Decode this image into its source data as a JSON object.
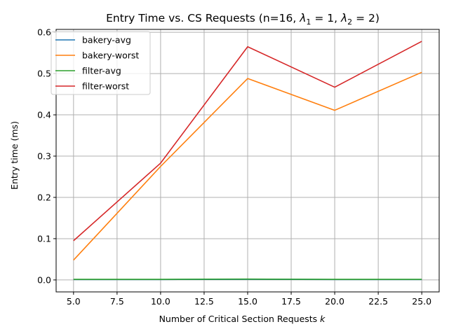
{
  "chart_data": {
    "type": "line",
    "title_main": "Entry Time vs. CS Requests (n=16, ",
    "title_lambda1": "λ",
    "title_lambda1_sub": "1",
    "title_eq1": " = 1, ",
    "title_lambda2": "λ",
    "title_lambda2_sub": "2",
    "title_eq2": " = 2)",
    "xlabel_main": "Number of Critical Section Requests ",
    "xlabel_var": "k",
    "ylabel": "Entry time (ms)",
    "x": [
      5,
      10,
      15,
      20,
      25
    ],
    "xlim": [
      4.0,
      26.0
    ],
    "ylim": [
      -0.029,
      0.607
    ],
    "xticks": [
      5.0,
      7.5,
      10.0,
      12.5,
      15.0,
      17.5,
      20.0,
      22.5,
      25.0
    ],
    "xtick_labels": [
      "5.0",
      "7.5",
      "10.0",
      "12.5",
      "15.0",
      "17.5",
      "20.0",
      "22.5",
      "25.0"
    ],
    "yticks": [
      0.0,
      0.1,
      0.2,
      0.3,
      0.4,
      0.5,
      0.6
    ],
    "ytick_labels": [
      "0.0",
      "0.1",
      "0.2",
      "0.3",
      "0.4",
      "0.5",
      "0.6"
    ],
    "grid": true,
    "legend_position": "upper-left",
    "series": [
      {
        "name": "bakery-avg",
        "color": "#1f77b4",
        "values": [
          0.001,
          0.001,
          0.0015,
          0.001,
          0.001
        ]
      },
      {
        "name": "bakery-worst",
        "color": "#ff7f0e",
        "values": [
          0.048,
          0.275,
          0.488,
          0.411,
          0.503
        ]
      },
      {
        "name": "filter-avg",
        "color": "#2ca02c",
        "values": [
          0.0015,
          0.0015,
          0.002,
          0.0015,
          0.0015
        ]
      },
      {
        "name": "filter-worst",
        "color": "#d62728",
        "values": [
          0.095,
          0.283,
          0.565,
          0.467,
          0.578
        ]
      }
    ]
  }
}
